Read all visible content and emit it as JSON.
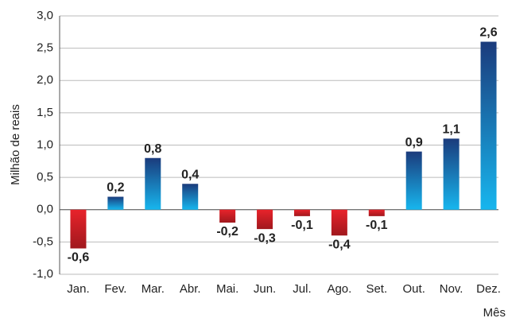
{
  "chart_data": {
    "type": "bar",
    "categories": [
      "Jan.",
      "Fev.",
      "Mar.",
      "Abr.",
      "Mai.",
      "Jun.",
      "Jul.",
      "Ago.",
      "Set.",
      "Out.",
      "Nov.",
      "Dez."
    ],
    "values": [
      -0.6,
      0.2,
      0.8,
      0.4,
      -0.2,
      -0.3,
      -0.1,
      -0.4,
      -0.1,
      0.9,
      1.1,
      2.6
    ],
    "value_labels": [
      "-0,6",
      "0,2",
      "0,8",
      "0,4",
      "-0,2",
      "-0,3",
      "-0,1",
      "-0,4",
      "-0,1",
      "0,9",
      "1,1",
      "2,6"
    ],
    "y_label": "Milhão de reais",
    "x_label": "Mês",
    "ylim": [
      -1.0,
      3.0
    ],
    "yticks": [
      {
        "value": -1.0,
        "label": "-1,0"
      },
      {
        "value": -0.5,
        "label": "-0,5"
      },
      {
        "value": 0,
        "label": "0,0"
      },
      {
        "value": 0.5,
        "label": "0,5"
      },
      {
        "value": 1.0,
        "label": "1,0"
      },
      {
        "value": 1.5,
        "label": "1,5"
      },
      {
        "value": 2.0,
        "label": "2,0"
      },
      {
        "value": 2.5,
        "label": "2,5"
      },
      {
        "value": 3.0,
        "label": "3,0"
      }
    ],
    "grid": true,
    "colors": {
      "positive": [
        "#1b3b7c",
        "#17b6ee"
      ],
      "negative": [
        "#e8232b",
        "#a0181d"
      ]
    }
  }
}
